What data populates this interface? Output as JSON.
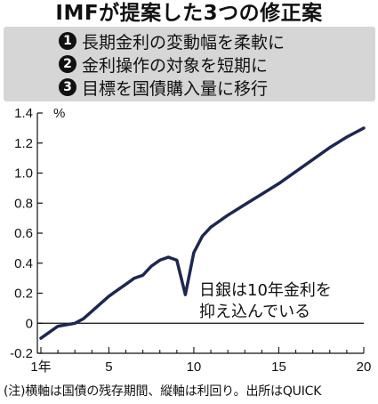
{
  "title": "IMFが提案した3つの修正案",
  "proposals": [
    {
      "num": "1",
      "text": "長期金利の変動幅を柔軟に"
    },
    {
      "num": "2",
      "text": "金利操作の対象を短期に"
    },
    {
      "num": "3",
      "text": "目標を国債購入量に移行"
    }
  ],
  "chart_data": {
    "type": "line",
    "x": [
      1,
      2,
      3,
      3.5,
      4,
      4.5,
      5,
      5.5,
      6,
      6.5,
      7,
      7.5,
      8,
      8.5,
      9,
      9.5,
      10,
      10.5,
      11,
      12,
      13,
      14,
      15,
      16,
      17,
      18,
      19,
      20
    ],
    "y": [
      -0.1,
      -0.02,
      0.0,
      0.03,
      0.08,
      0.13,
      0.18,
      0.22,
      0.26,
      0.3,
      0.32,
      0.38,
      0.42,
      0.44,
      0.42,
      0.19,
      0.47,
      0.58,
      0.64,
      0.72,
      0.79,
      0.86,
      0.93,
      1.01,
      1.09,
      1.17,
      1.24,
      1.3
    ],
    "xlim": [
      1,
      20
    ],
    "ylim": [
      -0.2,
      1.4
    ],
    "xticks": [
      1,
      5,
      10,
      15,
      20
    ],
    "xtick_labels": [
      "1年",
      "5",
      "10",
      "15",
      "20"
    ],
    "yticks": [
      -0.2,
      0,
      0.2,
      0.4,
      0.6,
      0.8,
      1.0,
      1.2,
      1.4
    ],
    "ytick_labels": [
      "-0.2",
      "0",
      "0.2",
      "0.4",
      "0.6",
      "0.8",
      "1.0",
      "1.2",
      "1.4"
    ],
    "yunit": "%",
    "grid": false,
    "line_color": "#1d2851",
    "annotation": [
      "日銀は10年金利を",
      "抑え込んでいる"
    ]
  },
  "note": "(注)横軸は国債の残存期間、縦軸は利回り。出所はQUICK"
}
